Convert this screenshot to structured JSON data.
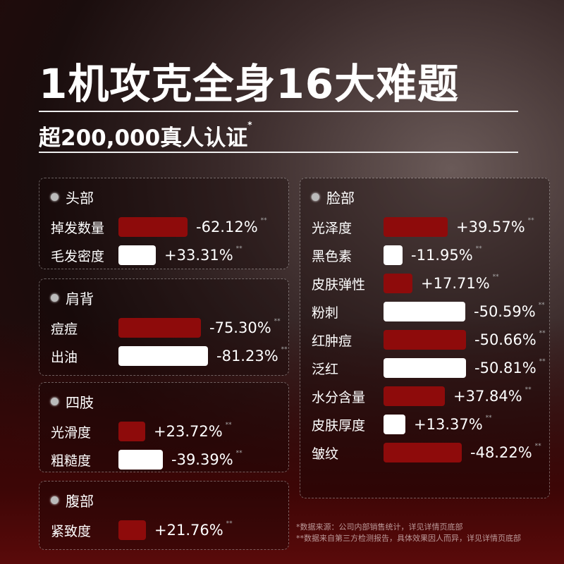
{
  "title": "1机攻克全身16大难题",
  "subtitle": "超200,000真人认证",
  "subtitle_mark": "*",
  "colors": {
    "red": "#8e0b0b",
    "white": "#ffffff"
  },
  "panels": [
    {
      "name": "头部",
      "items": [
        {
          "label": "掉发数量",
          "value": "-62.12%",
          "amount": 62.12,
          "color": "red",
          "mark": "**"
        },
        {
          "label": "毛发密度",
          "value": "+33.31%",
          "amount": 33.31,
          "color": "white",
          "mark": "**"
        }
      ]
    },
    {
      "name": "肩背",
      "items": [
        {
          "label": "痘痘",
          "value": "-75.30%",
          "amount": 75.3,
          "color": "red",
          "mark": "**"
        },
        {
          "label": "出油",
          "value": "-81.23%",
          "amount": 81.23,
          "color": "white",
          "mark": "**"
        }
      ]
    },
    {
      "name": "四肢",
      "items": [
        {
          "label": "光滑度",
          "value": "+23.72%",
          "amount": 23.72,
          "color": "red",
          "mark": "**"
        },
        {
          "label": "粗糙度",
          "value": "-39.39%",
          "amount": 39.39,
          "color": "white",
          "mark": "**"
        }
      ]
    },
    {
      "name": "腹部",
      "items": [
        {
          "label": "紧致度",
          "value": "+21.76%",
          "amount": 21.76,
          "color": "red",
          "mark": "**"
        }
      ]
    },
    {
      "name": "脸部",
      "items": [
        {
          "label": "光泽度",
          "value": "+39.57%",
          "amount": 39.57,
          "color": "red",
          "mark": "**"
        },
        {
          "label": "黑色素",
          "value": "-11.95%",
          "amount": 11.95,
          "color": "white",
          "mark": "**"
        },
        {
          "label": "皮肤弹性",
          "value": "+17.71%",
          "amount": 17.71,
          "color": "red",
          "mark": "**"
        },
        {
          "label": "粉刺",
          "value": "-50.59%",
          "amount": 50.59,
          "color": "white",
          "mark": "**"
        },
        {
          "label": "红肿痘",
          "value": "-50.66%",
          "amount": 50.66,
          "color": "red",
          "mark": "**"
        },
        {
          "label": "泛红",
          "value": "-50.81%",
          "amount": 50.81,
          "color": "white",
          "mark": "**"
        },
        {
          "label": "水分含量",
          "value": "+37.84%",
          "amount": 37.84,
          "color": "red",
          "mark": "**"
        },
        {
          "label": "皮肤厚度",
          "value": "+13.37%",
          "amount": 13.37,
          "color": "white",
          "mark": "**"
        },
        {
          "label": "皱纹",
          "value": "-48.22%",
          "amount": 48.22,
          "color": "red",
          "mark": "**"
        }
      ]
    }
  ],
  "footnotes": [
    "*数据来源：公司内部销售统计，详见详情页底部",
    "**数据来自第三方检测报告，具体效果因人而异，详见详情页底部"
  ]
}
